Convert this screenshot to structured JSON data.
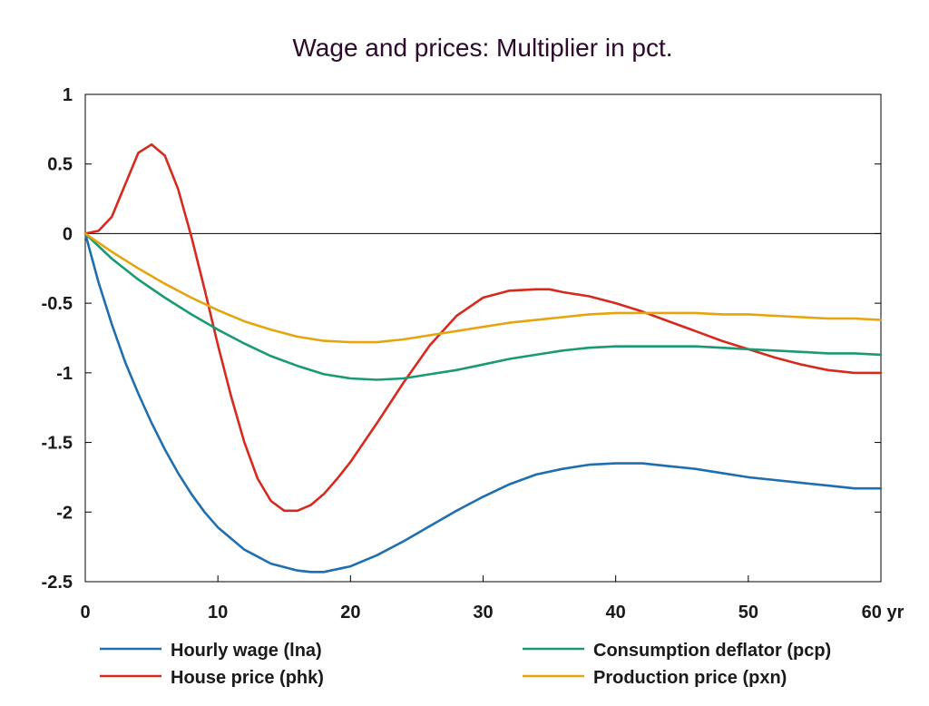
{
  "chart_data": {
    "type": "line",
    "title": "Wage and prices: Multiplier in pct.",
    "xlabel": "",
    "ylabel": "",
    "x_unit_label": "yr",
    "xlim": [
      0,
      60
    ],
    "ylim": [
      -2.5,
      1
    ],
    "x_ticks": [
      0,
      10,
      20,
      30,
      40,
      50,
      60
    ],
    "y_ticks": [
      1,
      0.5,
      0,
      -0.5,
      -1,
      -1.5,
      -2,
      -2.5
    ],
    "y_tick_labels": [
      "1",
      "0.5",
      "0",
      "-0.5",
      "-1",
      "-1.5",
      "-2",
      "-2.5"
    ],
    "x_tick_labels": [
      "0",
      "10",
      "20",
      "30",
      "40",
      "50",
      "60 yr"
    ],
    "grid": false,
    "zero_line": true,
    "legend_position": "bottom",
    "series": [
      {
        "name": "Hourly wage (lna)",
        "color": "#1f6fb0",
        "x": [
          0,
          1,
          2,
          3,
          4,
          5,
          6,
          7,
          8,
          9,
          10,
          12,
          14,
          16,
          17,
          18,
          20,
          22,
          24,
          26,
          28,
          30,
          32,
          34,
          36,
          38,
          40,
          42,
          44,
          46,
          48,
          50,
          52,
          54,
          56,
          58,
          60
        ],
        "y": [
          0,
          -0.35,
          -0.65,
          -0.92,
          -1.15,
          -1.36,
          -1.55,
          -1.72,
          -1.87,
          -2.0,
          -2.11,
          -2.27,
          -2.37,
          -2.42,
          -2.43,
          -2.43,
          -2.39,
          -2.31,
          -2.21,
          -2.1,
          -1.99,
          -1.89,
          -1.8,
          -1.73,
          -1.69,
          -1.66,
          -1.65,
          -1.65,
          -1.67,
          -1.69,
          -1.72,
          -1.75,
          -1.77,
          -1.79,
          -1.81,
          -1.83,
          -1.83
        ]
      },
      {
        "name": "House price (phk)",
        "color": "#d62a1e",
        "x": [
          0,
          1,
          2,
          3,
          4,
          5,
          6,
          7,
          8,
          9,
          10,
          11,
          12,
          13,
          14,
          15,
          16,
          17,
          18,
          19,
          20,
          22,
          24,
          26,
          28,
          30,
          32,
          34,
          35,
          36,
          38,
          40,
          42,
          44,
          46,
          48,
          50,
          52,
          54,
          56,
          58,
          60
        ],
        "y": [
          0,
          0.02,
          0.12,
          0.35,
          0.58,
          0.64,
          0.56,
          0.32,
          -0.02,
          -0.4,
          -0.8,
          -1.17,
          -1.5,
          -1.76,
          -1.92,
          -1.99,
          -1.99,
          -1.95,
          -1.87,
          -1.76,
          -1.64,
          -1.36,
          -1.07,
          -0.8,
          -0.59,
          -0.46,
          -0.41,
          -0.4,
          -0.4,
          -0.42,
          -0.45,
          -0.5,
          -0.56,
          -0.63,
          -0.7,
          -0.77,
          -0.83,
          -0.89,
          -0.94,
          -0.98,
          -1.0,
          -1.0
        ]
      },
      {
        "name": "Consumption deflator (pcp)",
        "color": "#1a9a74",
        "x": [
          0,
          2,
          4,
          6,
          8,
          10,
          12,
          14,
          16,
          18,
          20,
          22,
          24,
          26,
          28,
          30,
          32,
          34,
          36,
          38,
          40,
          42,
          44,
          46,
          48,
          50,
          52,
          54,
          56,
          58,
          60
        ],
        "y": [
          0,
          -0.18,
          -0.33,
          -0.46,
          -0.58,
          -0.69,
          -0.79,
          -0.88,
          -0.95,
          -1.01,
          -1.04,
          -1.05,
          -1.04,
          -1.01,
          -0.98,
          -0.94,
          -0.9,
          -0.87,
          -0.84,
          -0.82,
          -0.81,
          -0.81,
          -0.81,
          -0.81,
          -0.82,
          -0.83,
          -0.84,
          -0.85,
          -0.86,
          -0.86,
          -0.87
        ]
      },
      {
        "name": "Production price (pxn)",
        "color": "#e5a50f",
        "x": [
          0,
          2,
          4,
          6,
          8,
          10,
          12,
          14,
          16,
          18,
          20,
          22,
          24,
          26,
          28,
          30,
          32,
          34,
          36,
          38,
          40,
          42,
          44,
          46,
          48,
          50,
          52,
          54,
          56,
          58,
          60
        ],
        "y": [
          0,
          -0.13,
          -0.25,
          -0.36,
          -0.46,
          -0.55,
          -0.63,
          -0.69,
          -0.74,
          -0.77,
          -0.78,
          -0.78,
          -0.76,
          -0.73,
          -0.7,
          -0.67,
          -0.64,
          -0.62,
          -0.6,
          -0.58,
          -0.57,
          -0.57,
          -0.57,
          -0.57,
          -0.58,
          -0.58,
          -0.59,
          -0.6,
          -0.61,
          -0.61,
          -0.62
        ]
      }
    ]
  }
}
